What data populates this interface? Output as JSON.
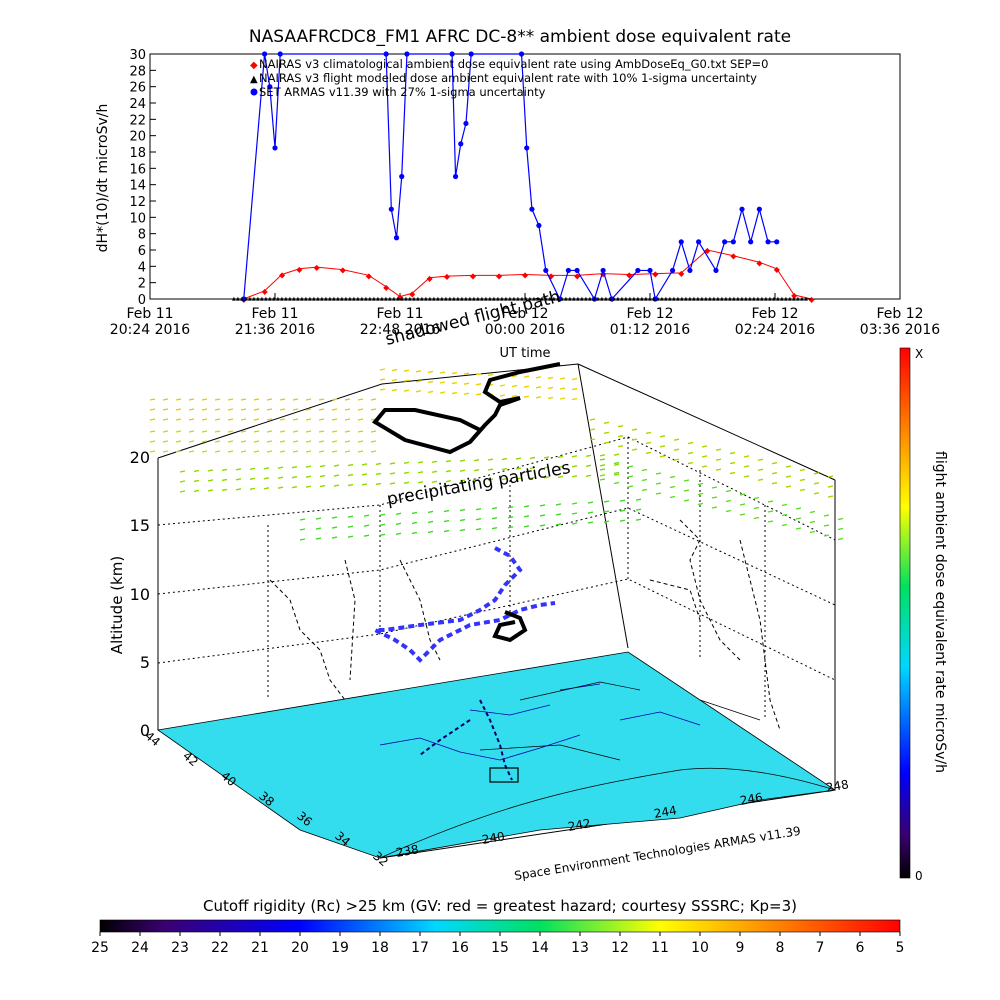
{
  "top_chart": {
    "title": "NASAAFRCDC8_FM1 AFRC DC-8** ambient dose equivalent rate",
    "ylabel": "dH*(10)/dt microSv/h",
    "xlabel": "UT time",
    "x_ticks": [
      {
        "line1": "Feb 11",
        "line2": "20:24 2016"
      },
      {
        "line1": "Feb 11",
        "line2": "21:36 2016"
      },
      {
        "line1": "Feb 11",
        "line2": "22:48 2016"
      },
      {
        "line1": "Feb 12",
        "line2": "00:00 2016"
      },
      {
        "line1": "Feb 12",
        "line2": "01:12 2016"
      },
      {
        "line1": "Feb 12",
        "line2": "02:24 2016"
      },
      {
        "line1": "Feb 12",
        "line2": "03:36 2016"
      }
    ],
    "y_ticks": [
      "0",
      "2",
      "4",
      "6",
      "8",
      "10",
      "12",
      "14",
      "16",
      "18",
      "20",
      "22",
      "24",
      "26",
      "28",
      "30"
    ],
    "legend": [
      "NAIRAS v3 climatological ambient dose equivalent rate using AmbDoseEq_G0.txt SEP=0",
      "NAIRAS v3 flight modeled dose ambient equivalent rate with 10% 1-sigma uncertainty",
      "SET ARMAS v11.39 with 27% 1-sigma uncertainty"
    ],
    "colors": {
      "nairas": "#ff0000",
      "armas": "#0000ff",
      "model": "#000000"
    }
  },
  "chart_data": {
    "type": "line",
    "title": "NASAAFRCDC8_FM1 AFRC DC-8** ambient dose equivalent rate",
    "xlabel": "UT time",
    "ylabel": "dH*(10)/dt microSv/h",
    "ylim": [
      0,
      30
    ],
    "xlim": [
      "2016-02-11 20:24",
      "2016-02-12 03:36"
    ],
    "series": [
      {
        "name": "NAIRAS v3 climatological ambient dose equivalent rate using AmbDoseEq_G0.txt SEP=0",
        "x": [
          "2016-02-11 21:18",
          "2016-02-11 21:30",
          "2016-02-11 21:40",
          "2016-02-11 21:50",
          "2016-02-11 22:00",
          "2016-02-11 22:15",
          "2016-02-11 22:30",
          "2016-02-11 22:40",
          "2016-02-11 22:48",
          "2016-02-11 22:55",
          "2016-02-11 23:05",
          "2016-02-11 23:15",
          "2016-02-11 23:30",
          "2016-02-11 23:45",
          "2016-02-12 00:00",
          "2016-02-12 00:15",
          "2016-02-12 00:30",
          "2016-02-12 00:45",
          "2016-02-12 01:00",
          "2016-02-12 01:15",
          "2016-02-12 01:30",
          "2016-02-12 01:45",
          "2016-02-12 02:00",
          "2016-02-12 02:15",
          "2016-02-12 02:25",
          "2016-02-12 02:35",
          "2016-02-12 02:45"
        ],
        "values": [
          0.0,
          1.0,
          3.0,
          3.7,
          3.9,
          3.6,
          2.9,
          1.5,
          0.3,
          0.7,
          2.6,
          2.8,
          2.9,
          2.9,
          3.0,
          2.9,
          2.9,
          3.1,
          3.0,
          3.1,
          3.2,
          6.0,
          5.3,
          4.5,
          3.7,
          0.5,
          0.0
        ]
      },
      {
        "name": "NAIRAS v3 flight modeled dose ambient equivalent rate with 10% 1-sigma uncertainty",
        "x": [
          "2016-02-11 21:18",
          "2016-02-12 02:45"
        ],
        "values": [
          0.0,
          0.0
        ]
      },
      {
        "name": "SET ARMAS v11.39 with 27% 1-sigma uncertainty",
        "x": [
          "2016-02-11 21:18",
          "2016-02-11 21:30",
          "2016-02-11 21:33",
          "2016-02-11 21:36",
          "2016-02-11 21:39",
          "2016-02-11 22:40",
          "2016-02-11 22:43",
          "2016-02-11 22:46",
          "2016-02-11 22:49",
          "2016-02-11 22:52",
          "2016-02-11 23:18",
          "2016-02-11 23:20",
          "2016-02-11 23:23",
          "2016-02-11 23:26",
          "2016-02-11 23:29",
          "2016-02-11 23:58",
          "2016-02-12 00:01",
          "2016-02-12 00:04",
          "2016-02-12 00:08",
          "2016-02-12 00:12",
          "2016-02-12 00:20",
          "2016-02-12 00:25",
          "2016-02-12 00:30",
          "2016-02-12 00:40",
          "2016-02-12 00:45",
          "2016-02-12 00:50",
          "2016-02-12 01:05",
          "2016-02-12 01:12",
          "2016-02-12 01:15",
          "2016-02-12 01:25",
          "2016-02-12 01:30",
          "2016-02-12 01:35",
          "2016-02-12 01:40",
          "2016-02-12 01:50",
          "2016-02-12 01:55",
          "2016-02-12 02:00",
          "2016-02-12 02:05",
          "2016-02-12 02:10",
          "2016-02-12 02:15",
          "2016-02-12 02:20",
          "2016-02-12 02:25"
        ],
        "values": [
          0,
          30,
          26,
          18.5,
          30,
          30,
          11,
          7.5,
          15,
          30,
          30,
          15,
          19,
          21.5,
          30,
          30,
          18.5,
          11,
          9,
          3.5,
          0,
          3.5,
          3.5,
          0,
          3.5,
          0,
          3.5,
          3.5,
          0,
          3.5,
          7.0,
          3.5,
          7.0,
          3.5,
          7.0,
          7.0,
          11,
          7.0,
          11,
          7.0,
          7.0
        ]
      }
    ],
    "grid": false,
    "legend_position": "top-left"
  },
  "scene": {
    "zlabel": "Altitude (km)",
    "z_ticks": [
      "0",
      "5",
      "10",
      "15",
      "20"
    ],
    "lat_ticks": [
      "44",
      "42",
      "40",
      "38",
      "36",
      "34",
      "32"
    ],
    "lon_ticks": [
      "238",
      "240",
      "242",
      "244",
      "246",
      "248"
    ],
    "credit": "Space Environment Technologies ARMAS v11.39",
    "annotation_shadow": "shadowed flight path",
    "annotation_particles": "precipitating particles",
    "ground_color": "#33ddee"
  },
  "right_colorbar": {
    "label": "flight ambient dose equivalent rate microSv/h",
    "max_label": "X",
    "min_label": "0"
  },
  "bottom_colorbar": {
    "title": "Cutoff rigidity (Rc) >25 km (GV: red = greatest hazard; courtesy SSSRC; Kp=3)",
    "ticks": [
      "25",
      "24",
      "23",
      "22",
      "21",
      "20",
      "19",
      "18",
      "17",
      "16",
      "15",
      "14",
      "13",
      "12",
      "11",
      "10",
      "9",
      "8",
      "7",
      "6",
      "5"
    ]
  }
}
